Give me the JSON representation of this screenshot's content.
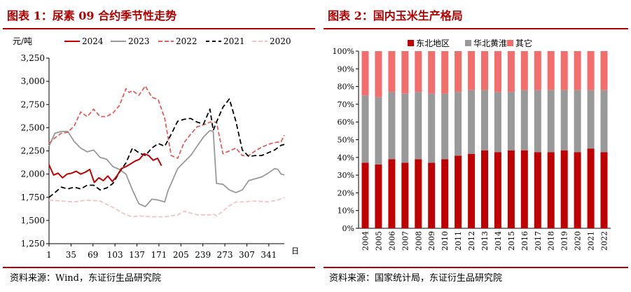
{
  "left_panel": {
    "title": "图表 1：尿素 09 合约季节性走势",
    "source": "资料来源：Wind，东证衍生品研究院"
  },
  "right_panel": {
    "title": "图表 2：国内玉米生产格局",
    "source": "资料来源：国家统计局，东证衍生品研究院"
  },
  "colors": {
    "accent": "#b00000",
    "s2024": "#c00000",
    "s2023": "#999999",
    "s2022": "#e06060",
    "s2021": "#000000",
    "s2020": "#f4c4c4",
    "dongbei": "#c00000",
    "huabei": "#999999",
    "qita": "#f36d6d"
  },
  "chart_data": [
    {
      "type": "line",
      "title": "",
      "ylabel": "元/吨",
      "xlabel": "日",
      "ylim": [
        1250,
        3250
      ],
      "yticks": [
        1250,
        1500,
        1750,
        2000,
        2250,
        2500,
        2750,
        3000,
        3250
      ],
      "ytick_labels": [
        "1,250",
        "1,500",
        "1,750",
        "2,000",
        "2,250",
        "2,500",
        "2,750",
        "3,000",
        "3,250"
      ],
      "xlim": [
        1,
        365
      ],
      "xticks": [
        1,
        35,
        69,
        103,
        137,
        171,
        205,
        239,
        273,
        307,
        341
      ],
      "legend_position": "top",
      "grid": false,
      "series": [
        {
          "name": "2024",
          "style": "solid",
          "x": [
            1,
            8,
            15,
            22,
            29,
            36,
            43,
            50,
            57,
            64,
            71,
            78,
            85,
            92,
            99,
            106,
            113,
            120,
            127,
            134,
            141,
            148,
            155,
            162,
            169,
            175
          ],
          "y": [
            2100,
            1990,
            2010,
            1960,
            2000,
            2010,
            2030,
            2000,
            2020,
            2050,
            1910,
            1960,
            1930,
            1980,
            1920,
            1980,
            2060,
            2080,
            2110,
            2140,
            2160,
            2220,
            2200,
            2150,
            2170,
            2090
          ]
        },
        {
          "name": "2023",
          "style": "solid",
          "x": [
            1,
            10,
            20,
            30,
            40,
            50,
            60,
            70,
            80,
            90,
            100,
            110,
            120,
            130,
            140,
            150,
            160,
            170,
            180,
            185,
            190,
            200,
            210,
            220,
            230,
            240,
            250,
            255,
            260,
            270,
            280,
            290,
            300,
            310,
            320,
            330,
            340,
            350,
            355,
            360,
            365
          ],
          "y": [
            2300,
            2440,
            2460,
            2460,
            2350,
            2280,
            2240,
            2260,
            2180,
            2160,
            2080,
            2050,
            2000,
            1830,
            1680,
            1650,
            1730,
            1720,
            1700,
            1820,
            1900,
            2060,
            2130,
            2200,
            2300,
            2400,
            2470,
            2460,
            1900,
            1890,
            1830,
            1800,
            1830,
            1930,
            1950,
            1970,
            2010,
            2060,
            2050,
            2000,
            1990
          ]
        },
        {
          "name": "2022",
          "style": "dashed",
          "x": [
            1,
            10,
            20,
            30,
            40,
            50,
            60,
            70,
            80,
            90,
            100,
            110,
            120,
            125,
            130,
            140,
            150,
            160,
            170,
            180,
            190,
            200,
            210,
            220,
            230,
            240,
            250,
            260,
            270,
            280,
            290,
            300,
            310,
            320,
            330,
            340,
            350,
            360,
            365
          ],
          "y": [
            2330,
            2390,
            2440,
            2450,
            2520,
            2670,
            2620,
            2700,
            2620,
            2620,
            2660,
            2740,
            2920,
            2880,
            2900,
            2850,
            2950,
            2830,
            2800,
            2600,
            2200,
            2170,
            2340,
            2430,
            2510,
            2530,
            2560,
            2560,
            2220,
            2250,
            2280,
            2200,
            2200,
            2250,
            2290,
            2320,
            2340,
            2350,
            2420
          ]
        },
        {
          "name": "2021",
          "style": "dashed",
          "x": [
            1,
            10,
            20,
            30,
            40,
            50,
            60,
            70,
            80,
            90,
            100,
            110,
            120,
            130,
            140,
            150,
            160,
            170,
            180,
            190,
            200,
            210,
            220,
            230,
            240,
            250,
            255,
            260,
            270,
            280,
            290,
            300,
            310,
            320,
            330,
            340,
            350,
            360,
            365
          ],
          "y": [
            1750,
            1800,
            1860,
            1840,
            1860,
            1840,
            1880,
            1880,
            1830,
            1850,
            1900,
            2020,
            2120,
            2280,
            2230,
            2200,
            2280,
            2330,
            2300,
            2430,
            2570,
            2590,
            2600,
            2560,
            2540,
            2700,
            2470,
            2560,
            2720,
            2810,
            2570,
            2260,
            2190,
            2200,
            2200,
            2230,
            2260,
            2310,
            2320
          ]
        },
        {
          "name": "2020",
          "style": "dashed",
          "x": [
            1,
            20,
            40,
            60,
            80,
            100,
            110,
            120,
            130,
            140,
            160,
            180,
            200,
            210,
            230,
            240,
            250,
            255,
            260,
            270,
            280,
            290,
            300,
            320,
            340,
            355,
            365
          ],
          "y": [
            1720,
            1710,
            1700,
            1720,
            1710,
            1640,
            1600,
            1560,
            1540,
            1550,
            1540,
            1540,
            1560,
            1600,
            1560,
            1560,
            1560,
            1570,
            1550,
            1600,
            1660,
            1700,
            1700,
            1710,
            1700,
            1720,
            1750
          ]
        }
      ]
    },
    {
      "type": "bar",
      "stacked": true,
      "title": "",
      "xlabel": "",
      "ylabel": "",
      "ylim": [
        0,
        100
      ],
      "yticks": [
        0,
        10,
        20,
        30,
        40,
        50,
        60,
        70,
        80,
        90,
        100
      ],
      "ytick_labels": [
        "0%",
        "10%",
        "20%",
        "30%",
        "40%",
        "50%",
        "60%",
        "70%",
        "80%",
        "90%",
        "100%"
      ],
      "legend_position": "top",
      "grid": false,
      "categories": [
        "2004",
        "2005",
        "2006",
        "2007",
        "2008",
        "2009",
        "2010",
        "2011",
        "2012",
        "2013",
        "2014",
        "2015",
        "2016",
        "2017",
        "2018",
        "2019",
        "2020",
        "2021",
        "2022"
      ],
      "series": [
        {
          "name": "东北地区",
          "values": [
            37,
            36,
            39,
            37,
            39,
            37,
            39,
            41,
            42,
            44,
            43,
            44,
            44,
            43,
            43,
            44,
            43,
            45,
            43
          ]
        },
        {
          "name": "华北黄淮",
          "values": [
            38,
            38,
            38,
            39,
            38,
            39,
            37,
            36,
            36,
            34,
            34,
            33,
            34,
            35,
            35,
            34,
            35,
            33,
            35
          ]
        },
        {
          "name": "其它",
          "values": [
            25,
            26,
            23,
            24,
            23,
            24,
            24,
            23,
            22,
            22,
            23,
            23,
            22,
            22,
            22,
            22,
            22,
            22,
            22
          ]
        }
      ]
    }
  ]
}
